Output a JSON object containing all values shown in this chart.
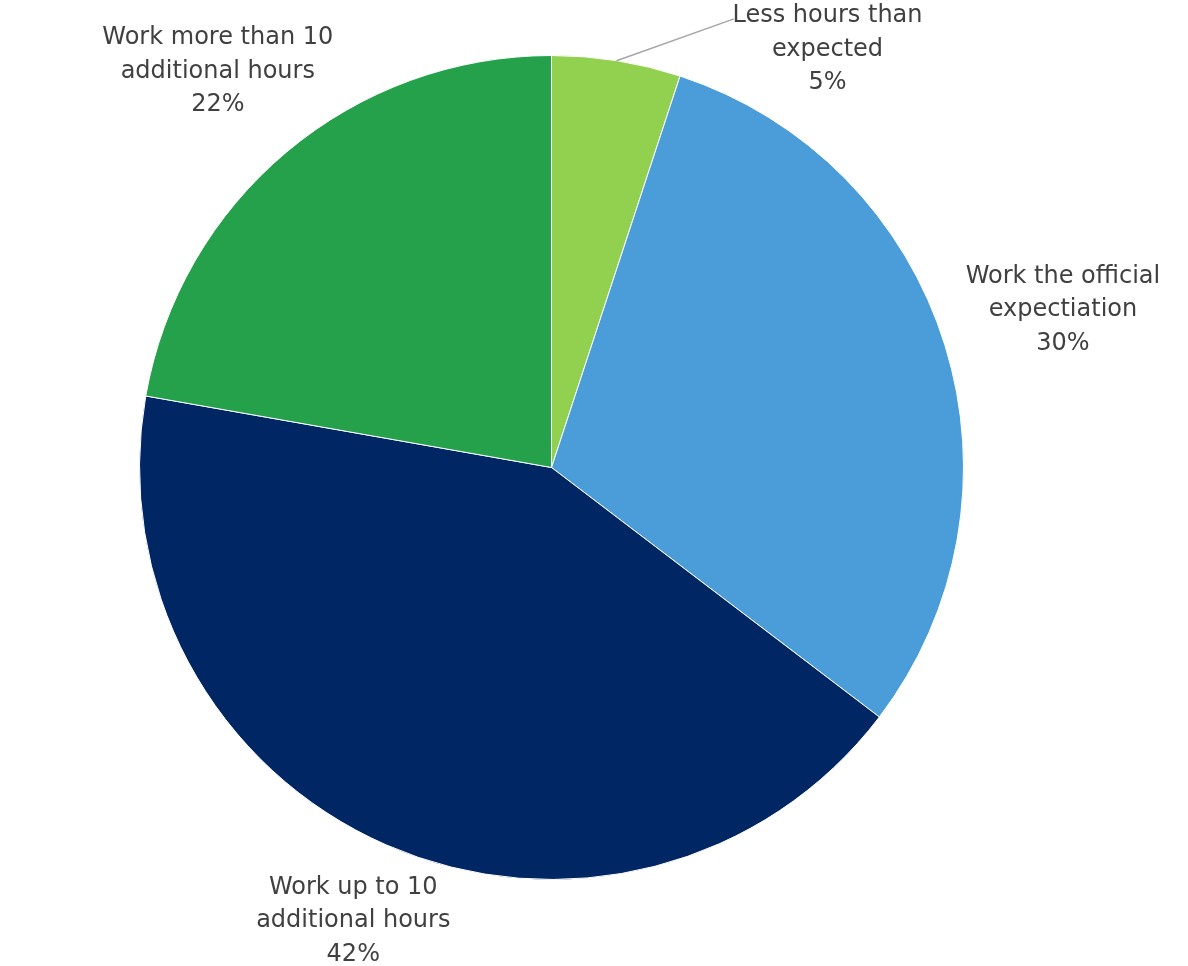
{
  "chart_data": {
    "type": "pie",
    "categories": [
      "Less hours than expected",
      "Work the official expectiation",
      "Work up to 10 additional hours",
      "Work more than 10 additional hours"
    ],
    "values": [
      5,
      30,
      42,
      22
    ],
    "colors": [
      "#92d050",
      "#4a9dd9",
      "#002663",
      "#25a04b"
    ],
    "value_labels": [
      "5%",
      "30%",
      "42%",
      "22%"
    ]
  }
}
